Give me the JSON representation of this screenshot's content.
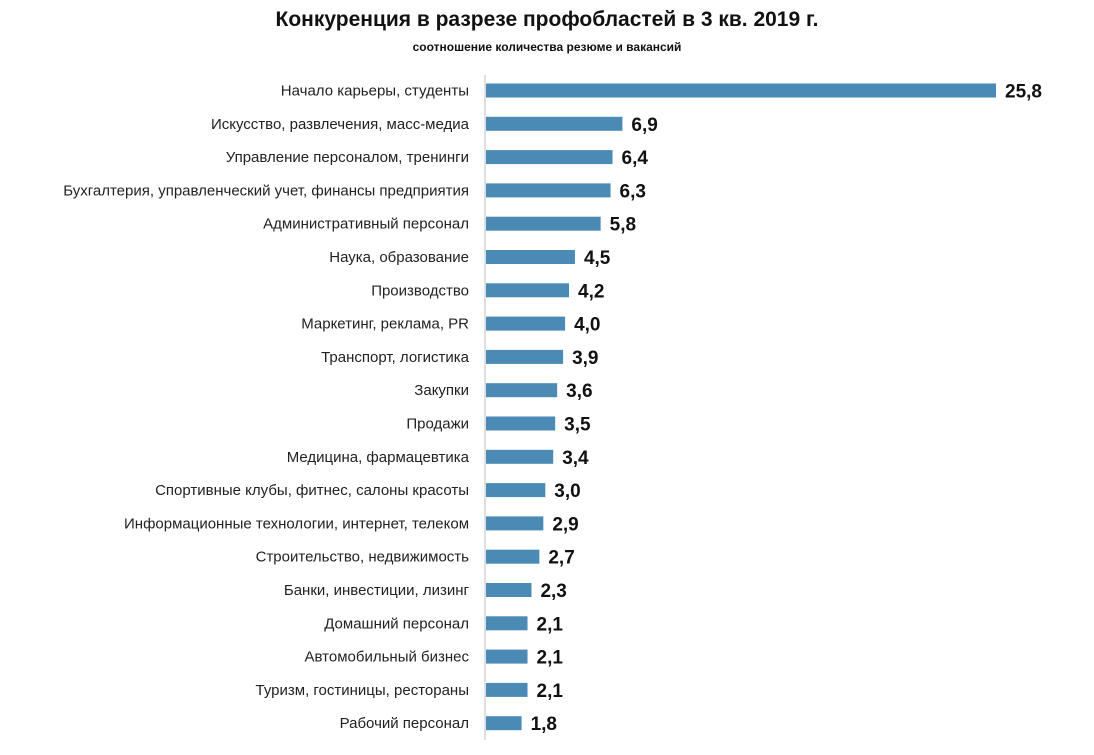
{
  "chart_data": {
    "type": "bar",
    "orientation": "horizontal",
    "title": "Конкуренция в разрезе профобластей в 3 кв. 2019 г.",
    "subtitle": "соотношение количества резюме и вакансий",
    "categories": [
      "Начало карьеры, студенты",
      "Искусство, развлечения, масс-медиа",
      "Управление персоналом, тренинги",
      "Бухгалтерия, управленческий учет, финансы предприятия",
      "Административный персонал",
      "Наука, образование",
      "Производство",
      "Маркетинг, реклама, PR",
      "Транспорт, логистика",
      "Закупки",
      "Продажи",
      "Медицина, фармацевтика",
      "Спортивные клубы, фитнес, салоны красоты",
      "Информационные технологии, интернет, телеком",
      "Строительство, недвижимость",
      "Банки, инвестиции, лизинг",
      "Домашний персонал",
      "Автомобильный бизнес",
      "Туризм, гостиницы, рестораны",
      "Рабочий персонал"
    ],
    "values": [
      25.8,
      6.9,
      6.4,
      6.3,
      5.8,
      4.5,
      4.2,
      4.0,
      3.9,
      3.6,
      3.5,
      3.4,
      3.0,
      2.9,
      2.7,
      2.3,
      2.1,
      2.1,
      2.1,
      1.8
    ],
    "value_labels": [
      "25,8",
      "6,9",
      "6,4",
      "6,3",
      "5,8",
      "4,5",
      "4,2",
      "4,0",
      "3,9",
      "3,6",
      "3,5",
      "3,4",
      "3,0",
      "2,9",
      "2,7",
      "2,3",
      "2,1",
      "2,1",
      "2,1",
      "1,8"
    ],
    "xlim": [
      0,
      25.8
    ],
    "bar_color": "#4a8ab5",
    "grid": false,
    "legend": "none"
  }
}
